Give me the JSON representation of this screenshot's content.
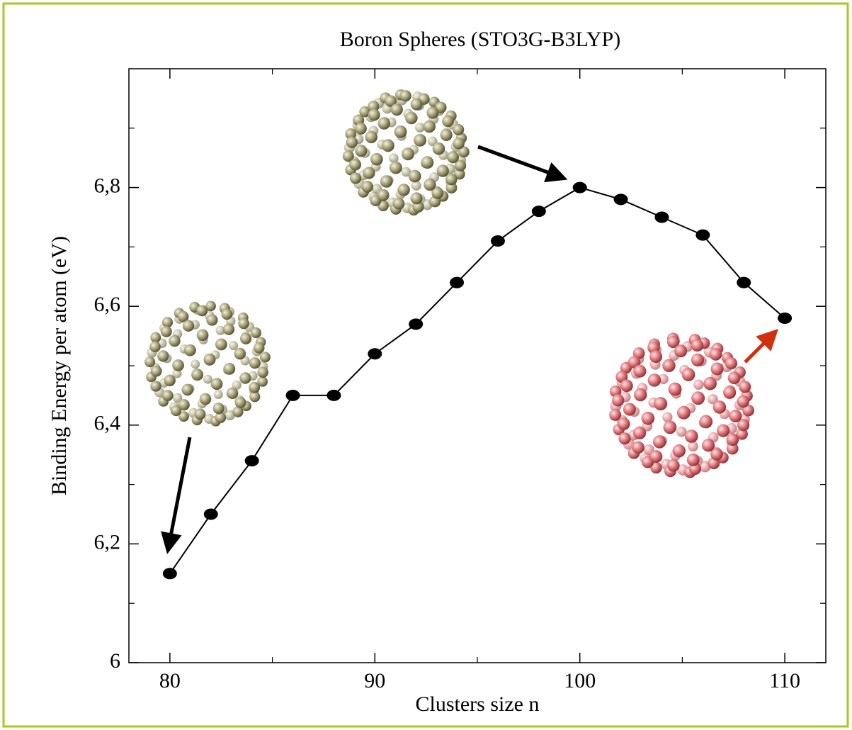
{
  "chart_data": {
    "type": "line",
    "title": "Boron Spheres (STO3G-B3LYP)",
    "x_label": "Clusters size n",
    "y_label": "Binding Energy per atom (eV)",
    "x": [
      80,
      82,
      84,
      86,
      88,
      90,
      92,
      94,
      96,
      98,
      100,
      102,
      104,
      106,
      108,
      110
    ],
    "values": [
      6.15,
      6.25,
      6.34,
      6.45,
      6.45,
      6.52,
      6.57,
      6.64,
      6.71,
      6.76,
      6.8,
      6.78,
      6.75,
      6.72,
      6.64,
      6.58
    ],
    "color": "#000000",
    "xlim": [
      78,
      112
    ],
    "ylim": [
      6,
      7
    ],
    "xticks": [
      80,
      90,
      100,
      110
    ],
    "xminorticks": [
      85,
      95,
      105
    ],
    "yticks": [
      6,
      {
        "value": 6.2,
        "label": "6,2"
      },
      {
        "value": 6.4,
        "label": "6,4"
      },
      {
        "value": 6.6,
        "label": "6,6"
      },
      {
        "value": 6.8,
        "label": "6,8"
      }
    ],
    "yminorticks": [
      6.1,
      6.3,
      6.5,
      6.7,
      6.9
    ]
  }
}
